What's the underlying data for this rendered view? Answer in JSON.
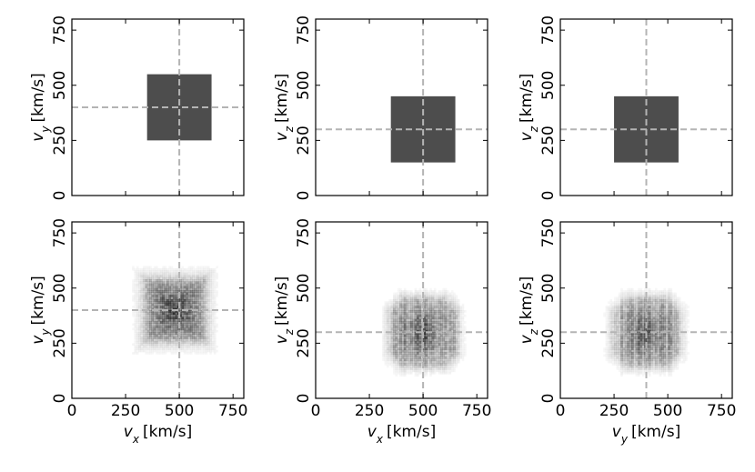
{
  "chart_data": [
    {
      "type": "heatmap",
      "panel": "top-left",
      "xlabel": "",
      "ylabel": {
        "sym": "v",
        "sub": "y",
        "unit": "[km/s]"
      },
      "xlim": [
        0,
        800
      ],
      "ylim": [
        0,
        800
      ],
      "xticks": [
        0,
        250,
        500,
        750
      ],
      "yticks": [
        0,
        250,
        500,
        750
      ],
      "show_xtick_labels": false,
      "box": {
        "x0": 350,
        "x1": 650,
        "y0": 250,
        "y1": 550,
        "color": "#4d4d4d"
      },
      "ref_x": 500,
      "ref_y": 400
    },
    {
      "type": "heatmap",
      "panel": "top-middle",
      "xlabel": "",
      "ylabel": {
        "sym": "v",
        "sub": "z",
        "unit": "[km/s]"
      },
      "xlim": [
        0,
        800
      ],
      "ylim": [
        0,
        800
      ],
      "xticks": [
        0,
        250,
        500,
        750
      ],
      "yticks": [
        0,
        250,
        500,
        750
      ],
      "show_xtick_labels": false,
      "box": {
        "x0": 350,
        "x1": 650,
        "y0": 150,
        "y1": 450,
        "color": "#4d4d4d"
      },
      "ref_x": 500,
      "ref_y": 300
    },
    {
      "type": "heatmap",
      "panel": "top-right",
      "xlabel": "",
      "ylabel": {
        "sym": "v",
        "sub": "z",
        "unit": "[km/s]"
      },
      "xlim": [
        0,
        800
      ],
      "ylim": [
        0,
        800
      ],
      "xticks": [
        0,
        250,
        500,
        750
      ],
      "yticks": [
        0,
        250,
        500,
        750
      ],
      "show_xtick_labels": false,
      "box": {
        "x0": 250,
        "x1": 550,
        "y0": 150,
        "y1": 450,
        "color": "#4d4d4d"
      },
      "ref_x": 400,
      "ref_y": 300
    },
    {
      "type": "heatmap",
      "panel": "bottom-left",
      "xlabel": {
        "sym": "v",
        "sub": "x",
        "unit": "[km/s]"
      },
      "ylabel": {
        "sym": "v",
        "sub": "y",
        "unit": "[km/s]"
      },
      "xlim": [
        0,
        800
      ],
      "ylim": [
        0,
        800
      ],
      "xticks": [
        0,
        250,
        500,
        750
      ],
      "yticks": [
        0,
        250,
        500,
        750
      ],
      "show_xtick_labels": true,
      "density": {
        "cx": 480,
        "cy": 400,
        "hx": 130,
        "hy": 130,
        "spread": 65,
        "shape": "square"
      },
      "ref_x": 500,
      "ref_y": 400
    },
    {
      "type": "heatmap",
      "panel": "bottom-middle",
      "xlabel": {
        "sym": "v",
        "sub": "x",
        "unit": "[km/s]"
      },
      "ylabel": {
        "sym": "v",
        "sub": "z",
        "unit": "[km/s]"
      },
      "xlim": [
        0,
        800
      ],
      "ylim": [
        0,
        800
      ],
      "xticks": [
        0,
        250,
        500,
        750
      ],
      "yticks": [
        0,
        250,
        500,
        750
      ],
      "show_xtick_labels": true,
      "density": {
        "cx": 500,
        "cy": 300,
        "hx": 150,
        "hy": 150,
        "spread": 50,
        "shape": "diamond"
      },
      "ref_x": 500,
      "ref_y": 300
    },
    {
      "type": "heatmap",
      "panel": "bottom-right",
      "xlabel": {
        "sym": "v",
        "sub": "y",
        "unit": "[km/s]"
      },
      "ylabel": {
        "sym": "v",
        "sub": "z",
        "unit": "[km/s]"
      },
      "xlim": [
        0,
        800
      ],
      "ylim": [
        0,
        800
      ],
      "xticks": [
        0,
        250,
        500,
        750
      ],
      "yticks": [
        0,
        250,
        500,
        750
      ],
      "show_xtick_labels": true,
      "density": {
        "cx": 400,
        "cy": 300,
        "hx": 150,
        "hy": 150,
        "spread": 50,
        "shape": "diamond"
      },
      "ref_x": 400,
      "ref_y": 300
    }
  ],
  "style": {
    "ref_line_color": "#b4b4b4",
    "density_color": "#000000"
  }
}
